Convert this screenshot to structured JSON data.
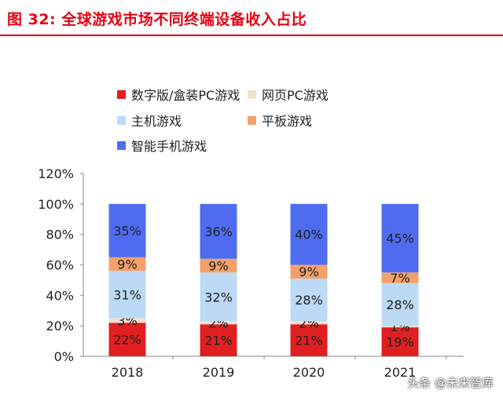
{
  "title": "图 32: 全球游戏市场不同终端设备收入占比",
  "watermark": "头条 @未来智库",
  "legend": [
    {
      "name": "数字版/盒装PC游戏",
      "color": "#e02020"
    },
    {
      "name": "网页PC游戏",
      "color": "#efe3cf"
    },
    {
      "name": "主机游戏",
      "color": "#bcd9f5"
    },
    {
      "name": "平板游戏",
      "color": "#f4a06a"
    },
    {
      "name": "智能手机游戏",
      "color": "#4f6cf0"
    }
  ],
  "chart_data": {
    "type": "bar",
    "stacked": true,
    "categories": [
      "2018",
      "2019",
      "2020",
      "2021"
    ],
    "ylim": [
      0,
      120
    ],
    "yticks": [
      "0%",
      "20%",
      "40%",
      "60%",
      "80%",
      "100%",
      "120%"
    ],
    "series": [
      {
        "name": "数字版/盒装PC游戏",
        "color": "#e02020",
        "values": [
          22,
          21,
          21,
          19
        ],
        "labels": [
          "22%",
          "21%",
          "21%",
          "19%"
        ]
      },
      {
        "name": "网页PC游戏",
        "color": "#efe3cf",
        "values": [
          3,
          2,
          2,
          1
        ],
        "labels": [
          "3%",
          "2%",
          "2%",
          "1%"
        ]
      },
      {
        "name": "主机游戏",
        "color": "#bcd9f5",
        "values": [
          31,
          32,
          28,
          28
        ],
        "labels": [
          "31%",
          "32%",
          "28%",
          "28%"
        ]
      },
      {
        "name": "平板游戏",
        "color": "#f4a06a",
        "values": [
          9,
          9,
          9,
          7
        ],
        "labels": [
          "9%",
          "9%",
          "9%",
          "7%"
        ]
      },
      {
        "name": "智能手机游戏",
        "color": "#4f6cf0",
        "values": [
          35,
          36,
          40,
          45
        ],
        "labels": [
          "35%",
          "36%",
          "40%",
          "45%"
        ]
      }
    ],
    "grid": false,
    "legend_position": "top-left"
  }
}
